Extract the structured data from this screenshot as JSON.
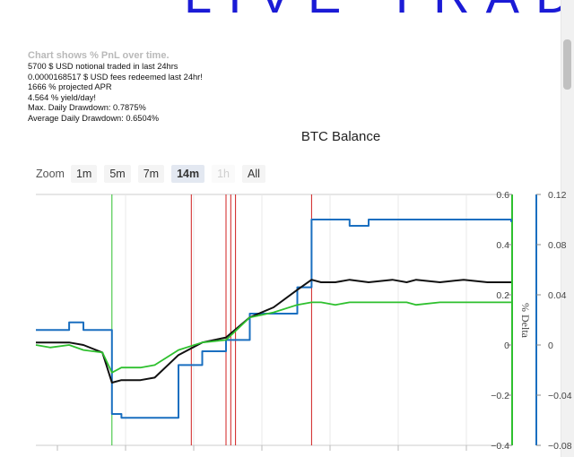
{
  "banner": {
    "text": "LIVE TRADE"
  },
  "stats": {
    "hint": "Chart shows % PnL over time.",
    "notional": "5700 $ USD notional traded in last 24hrs",
    "fees": "0.0000168517 $ USD fees redeemed last 24hr!",
    "apr": "1666 % projected APR",
    "daily_yield": "4.564 % yield/day!",
    "max_drawdown": "Max. Daily Drawdown: 0.7875%",
    "avg_drawdown": "Average Daily Drawdown: 0.6504%"
  },
  "zoom": {
    "label": "Zoom",
    "buttons": [
      {
        "label": "1m",
        "state": "normal"
      },
      {
        "label": "5m",
        "state": "normal"
      },
      {
        "label": "7m",
        "state": "normal"
      },
      {
        "label": "14m",
        "state": "active"
      },
      {
        "label": "1h",
        "state": "disabled"
      },
      {
        "label": "All",
        "state": "normal"
      }
    ]
  },
  "chart_data": {
    "type": "line",
    "title": "BTC Balance",
    "ylabel_right": "% Delta",
    "y_left": {
      "ylim": [
        -0.4,
        0.6
      ],
      "ticks": [
        "0.6",
        "0.4",
        "0.2",
        "0",
        "−0.2",
        "−0.4"
      ]
    },
    "y_right": {
      "ylim": [
        -0.08,
        0.12
      ],
      "ticks": [
        "0.12",
        "0.08",
        "0.04",
        "0",
        "−0.04",
        "−0.08"
      ]
    },
    "x": [
      0,
      3,
      7,
      10,
      14,
      16,
      18,
      20,
      22,
      25,
      30,
      35,
      40,
      45,
      50,
      55,
      58,
      60,
      63,
      66,
      70,
      75,
      78,
      80,
      85,
      90,
      95,
      100
    ],
    "series": [
      {
        "color": "#1a6fc0",
        "axis": "right",
        "values": [
          0.012,
          0.012,
          0.018,
          0.012,
          0.012,
          -0.055,
          -0.058,
          -0.058,
          -0.058,
          -0.058,
          -0.016,
          -0.005,
          0.004,
          0.025,
          0.025,
          0.046,
          0.1,
          0.1,
          0.1,
          0.095,
          0.1,
          0.1,
          0.1,
          0.1,
          0.1,
          0.1,
          0.1,
          0.098
        ]
      },
      {
        "color": "#111111",
        "axis": "left",
        "values": [
          0.01,
          0.01,
          0.01,
          0.0,
          -0.03,
          -0.15,
          -0.14,
          -0.14,
          -0.14,
          -0.13,
          -0.04,
          0.01,
          0.03,
          0.11,
          0.15,
          0.22,
          0.26,
          0.25,
          0.25,
          0.26,
          0.25,
          0.26,
          0.25,
          0.26,
          0.25,
          0.26,
          0.25,
          0.25
        ]
      },
      {
        "color": "#2ec02e",
        "axis": "left",
        "values": [
          0.0,
          -0.01,
          0.0,
          -0.02,
          -0.03,
          -0.11,
          -0.09,
          -0.09,
          -0.09,
          -0.08,
          -0.02,
          0.01,
          0.02,
          0.11,
          0.13,
          0.16,
          0.17,
          0.17,
          0.16,
          0.17,
          0.17,
          0.17,
          0.17,
          0.16,
          0.17,
          0.17,
          0.17,
          0.17
        ]
      }
    ],
    "markers": [
      {
        "color": "#2ec02e",
        "x": 16
      },
      {
        "color": "#d02020",
        "x": 32.7
      },
      {
        "color": "#d02020",
        "x": 40
      },
      {
        "color": "#d02020",
        "x": 41
      },
      {
        "color": "#d02020",
        "x": 42
      },
      {
        "color": "#d02020",
        "x": 58
      }
    ],
    "grid": "vertical",
    "legend": "none"
  }
}
